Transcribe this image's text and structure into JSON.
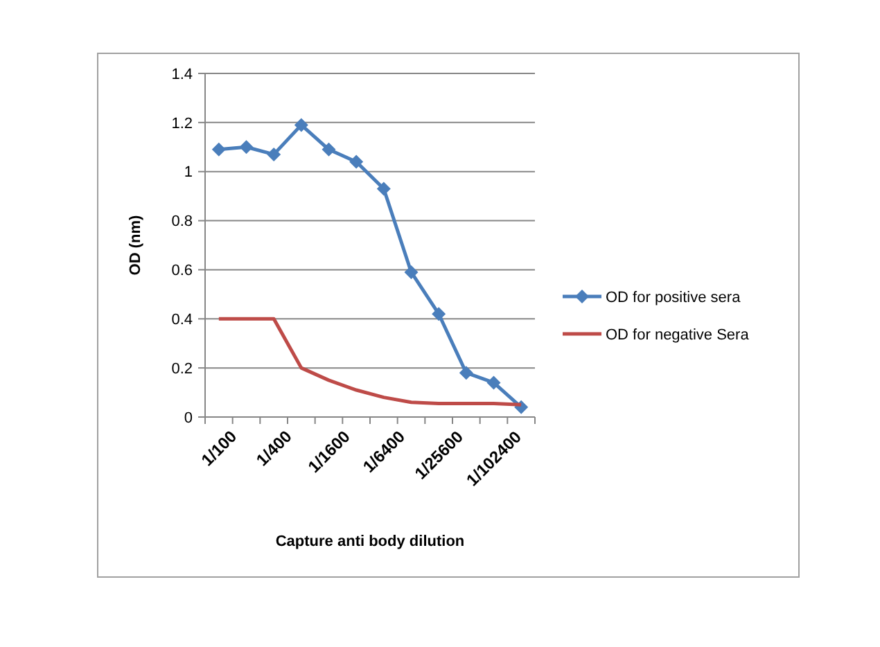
{
  "chart_data": {
    "type": "line",
    "xlabel": "Capture anti body dilution",
    "ylabel": "OD (nm)",
    "categories": [
      "1/100",
      null,
      "1/400",
      null,
      "1/1600",
      null,
      "1/6400",
      null,
      "1/25600",
      null,
      "1/102400",
      null
    ],
    "series": [
      {
        "name": "OD for positive sera",
        "color": "#4a7ebb",
        "marker": "diamond",
        "values": [
          1.09,
          1.1,
          1.07,
          1.19,
          1.09,
          1.04,
          0.93,
          0.59,
          0.42,
          0.18,
          0.14,
          0.04
        ]
      },
      {
        "name": "OD for negative Sera",
        "color": "#be4b48",
        "marker": "none",
        "values": [
          0.4,
          0.4,
          0.4,
          0.2,
          0.15,
          0.11,
          0.08,
          0.06,
          0.055,
          0.055,
          0.055,
          0.05
        ]
      }
    ],
    "ylim": [
      0,
      1.4
    ],
    "yticks": [
      0,
      0.2,
      0.4,
      0.6,
      0.8,
      1,
      1.2,
      1.4
    ],
    "grid": "y",
    "legend": "right"
  }
}
